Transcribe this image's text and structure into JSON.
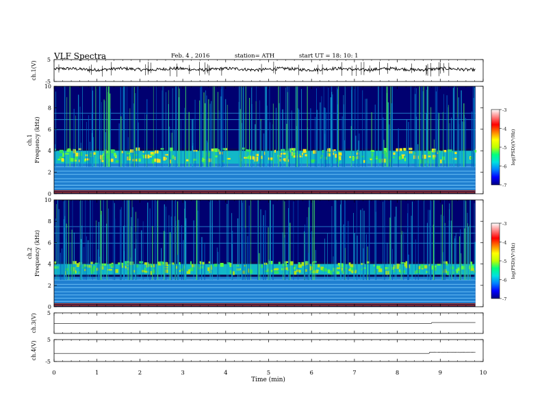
{
  "header": {
    "title": "VLF  Spectra",
    "date": "Feb. 4  , 2016",
    "station": "station= ATH",
    "start_ut": "start  UT =   18: 10: 1"
  },
  "chart_data": {
    "type": "heatmap",
    "xlabel": "Time  (min)",
    "xlim": [
      0,
      10
    ],
    "xticks": [
      "0",
      "1",
      "2",
      "3",
      "4",
      "5",
      "6",
      "7",
      "8",
      "9",
      "10"
    ],
    "panels": [
      {
        "id": "ch1v",
        "kind": "line",
        "ylabel": "ch.1(V)",
        "ylim": [
          -5,
          5
        ],
        "yticks": [
          "5",
          "-5"
        ],
        "baseline": 0.6
      },
      {
        "id": "ch1",
        "kind": "spectrogram",
        "ylabel_channel": "ch.1",
        "ylabel": "Frequency  (kHz)",
        "ylim": [
          0,
          10
        ],
        "yticks": [
          "10",
          "8",
          "6",
          "4",
          "2",
          "0"
        ],
        "noise_band_khz": [
          2.8,
          4.0
        ],
        "noise_color": "#f5e61e"
      },
      {
        "id": "ch2",
        "kind": "spectrogram",
        "ylabel_channel": "ch.2",
        "ylabel": "Frequency  (kHz)",
        "ylim": [
          0,
          10
        ],
        "yticks": [
          "10",
          "8",
          "6",
          "4",
          "2",
          "0"
        ],
        "noise_band_khz": [
          3.0,
          4.0
        ],
        "noise_color": "#a8e61e"
      },
      {
        "id": "ch3v",
        "kind": "line",
        "ylabel": "ch.3(V)",
        "ylim": [
          -5,
          5
        ],
        "yticks": [
          "5"
        ],
        "baseline": -0.2
      },
      {
        "id": "ch4v",
        "kind": "line",
        "ylabel": "ch.4(V)",
        "ylim": [
          -5,
          5
        ],
        "yticks": [
          "5",
          "-5"
        ],
        "baseline": -1.3
      }
    ],
    "colorbar": {
      "label": "log(PSD)(V²/Hz)",
      "range": [
        -7,
        -3
      ],
      "ticks": [
        "-3",
        "-4",
        "-5",
        "-6",
        "-7"
      ],
      "colors": [
        "#000080",
        "#0000ff",
        "#0080ff",
        "#00e0e0",
        "#00ff80",
        "#c0ff00",
        "#ffff00",
        "#ff8000",
        "#ff0000",
        "#ff8080",
        "#ffffff"
      ]
    }
  }
}
